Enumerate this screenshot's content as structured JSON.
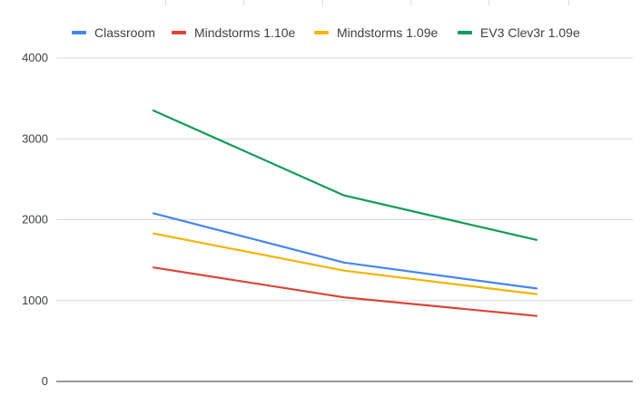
{
  "chart_data": {
    "type": "line",
    "title": "",
    "xlabel": "",
    "ylabel": "",
    "categories": [
      "",
      "",
      ""
    ],
    "ylim": [
      0,
      4000
    ],
    "yticks": [
      0,
      1000,
      2000,
      3000,
      4000
    ],
    "grid": true,
    "legend_position": "top",
    "series": [
      {
        "name": "Classroom",
        "color": "#4285f4",
        "values": [
          2080,
          1470,
          1150
        ]
      },
      {
        "name": "Mindstorms 1.10e",
        "color": "#db4437",
        "values": [
          1410,
          1040,
          810
        ]
      },
      {
        "name": "Mindstorms 1.09e",
        "color": "#f4b400",
        "values": [
          1830,
          1370,
          1080
        ]
      },
      {
        "name": "EV3 Clev3r 1.09e",
        "color": "#0f9d58",
        "values": [
          3350,
          2300,
          1750
        ]
      }
    ]
  }
}
